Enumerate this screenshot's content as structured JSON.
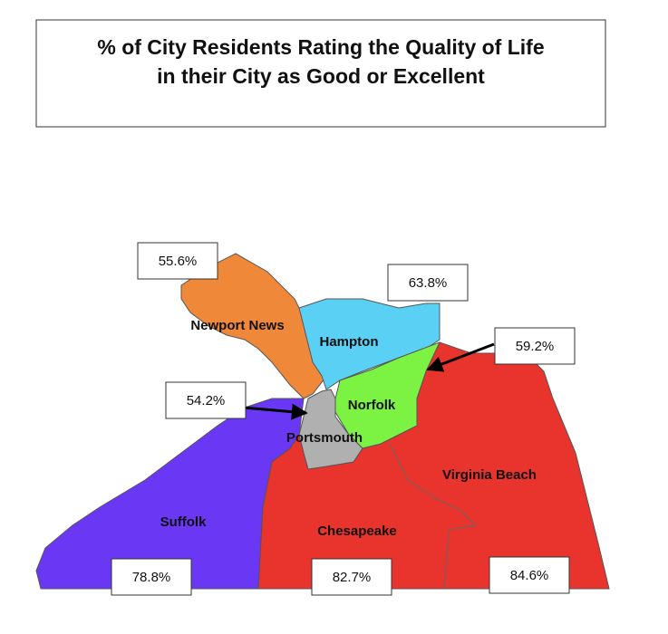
{
  "title": {
    "lines": [
      "% of City Residents Rating the Quality of Life",
      "in their City as Good or Excellent"
    ]
  },
  "regions": [
    {
      "name": "Newport News",
      "rating": "55.6%"
    },
    {
      "name": "Hampton",
      "rating": "63.8%"
    },
    {
      "name": "Norfolk",
      "rating": "59.2%"
    },
    {
      "name": "Portsmouth",
      "rating": "54.2%"
    },
    {
      "name": "Suffolk",
      "rating": "78.8%"
    },
    {
      "name": "Chesapeake",
      "rating": "82.7%"
    },
    {
      "name": "Virginia Beach",
      "rating": "84.6%"
    }
  ]
}
